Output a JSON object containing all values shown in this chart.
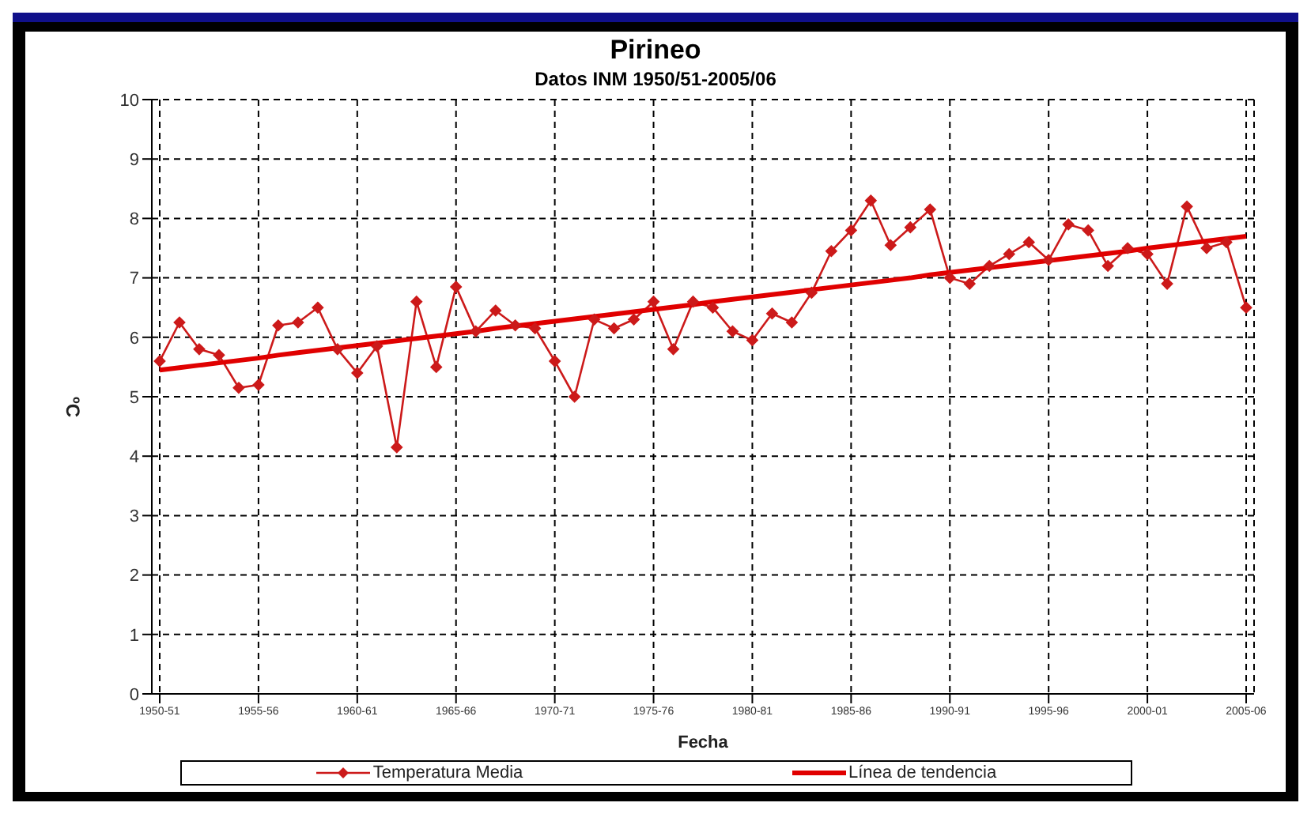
{
  "chart_data": {
    "type": "line",
    "title": "Pirineo",
    "subtitle": "Datos INM 1950/51-2005/06",
    "xlabel": "Fecha",
    "ylabel": "ºC",
    "categories": [
      "1950-51",
      null,
      null,
      null,
      null,
      "1955-56",
      null,
      null,
      null,
      null,
      "1960-61",
      null,
      null,
      null,
      null,
      "1965-66",
      null,
      null,
      null,
      null,
      "1970-71",
      null,
      null,
      null,
      null,
      "1975-76",
      null,
      null,
      null,
      null,
      "1980-81",
      null,
      null,
      null,
      null,
      "1985-86",
      null,
      null,
      null,
      null,
      "1990-91",
      null,
      null,
      null,
      null,
      "1995-96",
      null,
      null,
      null,
      null,
      "2000-01",
      null,
      null,
      null,
      null,
      "2005-06"
    ],
    "series": [
      {
        "name": "Temperatura Media",
        "color": "#cc1a1a",
        "marker": "diamond",
        "values": [
          5.6,
          6.25,
          5.8,
          5.7,
          5.15,
          5.2,
          6.2,
          6.25,
          6.5,
          5.8,
          5.4,
          5.85,
          4.15,
          6.6,
          5.5,
          6.85,
          6.1,
          6.45,
          6.2,
          6.15,
          5.6,
          5.0,
          6.3,
          6.15,
          6.3,
          6.6,
          5.8,
          6.6,
          6.5,
          6.1,
          5.95,
          6.4,
          6.25,
          6.75,
          7.45,
          7.8,
          8.3,
          7.55,
          7.85,
          8.15,
          7.0,
          6.9,
          7.2,
          7.4,
          7.6,
          7.3,
          7.9,
          7.8,
          7.2,
          7.5,
          7.4,
          6.9,
          8.2,
          7.5,
          7.6,
          6.5
        ]
      },
      {
        "name": "Línea de tendencia",
        "type": "line",
        "color": "#e00000",
        "marker": "none",
        "values": [
          5.45,
          5.49,
          5.53,
          5.57,
          5.61,
          5.65,
          5.7,
          5.74,
          5.78,
          5.82,
          5.86,
          5.9,
          5.94,
          5.98,
          6.02,
          6.06,
          6.1,
          6.15,
          6.19,
          6.23,
          6.27,
          6.31,
          6.35,
          6.39,
          6.43,
          6.47,
          6.51,
          6.55,
          6.6,
          6.64,
          6.68,
          6.72,
          6.76,
          6.8,
          6.84,
          6.88,
          6.92,
          6.96,
          7.0,
          7.05,
          7.09,
          7.13,
          7.17,
          7.21,
          7.25,
          7.29,
          7.33,
          7.37,
          7.41,
          7.45,
          7.5,
          7.54,
          7.58,
          7.62,
          7.66,
          7.7
        ]
      }
    ],
    "ylim": [
      0,
      10
    ],
    "yticks": [
      0,
      1,
      2,
      3,
      4,
      5,
      6,
      7,
      8,
      9,
      10
    ],
    "grid": true,
    "legend": "bottom",
    "line_style": "solid"
  }
}
